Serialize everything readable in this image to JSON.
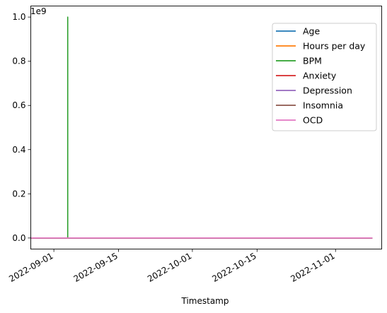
{
  "chart_data": {
    "type": "line",
    "title": "",
    "xlabel": "Timestamp",
    "ylabel": "",
    "y_offset_label": "1e9",
    "x_domain": [
      "2022-08-27",
      "2022-11-11"
    ],
    "ylim": [
      -0.05,
      1.05
    ],
    "x_ticks": [
      "2022-09-01",
      "2022-09-15",
      "2022-10-01",
      "2022-10-15",
      "2022-11-01"
    ],
    "y_ticks": [
      0.0,
      0.2,
      0.4,
      0.6,
      0.8,
      1.0
    ],
    "y_tick_labels": [
      "0.0",
      "0.2",
      "0.4",
      "0.6",
      "0.8",
      "1.0"
    ],
    "grid": false,
    "legend_position": "top-right",
    "data_start": "2022-08-27",
    "data_end": "2022-11-09",
    "series": [
      {
        "name": "Age",
        "color": "#1f77b4",
        "values": [
          [
            "2022-08-27",
            0.0
          ],
          [
            "2022-11-09",
            0.0
          ]
        ]
      },
      {
        "name": "Hours per day",
        "color": "#ff7f0e",
        "values": [
          [
            "2022-08-27",
            0.0
          ],
          [
            "2022-11-09",
            0.0
          ]
        ]
      },
      {
        "name": "BPM",
        "color": "#2ca02c",
        "values": [
          [
            "2022-08-27",
            0.0
          ],
          [
            "2022-09-04",
            0.0
          ],
          [
            "2022-09-04",
            1.0
          ],
          [
            "2022-09-04",
            0.0
          ],
          [
            "2022-11-09",
            0.0
          ]
        ]
      },
      {
        "name": "Anxiety",
        "color": "#d62728",
        "values": [
          [
            "2022-08-27",
            0.0
          ],
          [
            "2022-11-09",
            0.0
          ]
        ]
      },
      {
        "name": "Depression",
        "color": "#9467bd",
        "values": [
          [
            "2022-08-27",
            0.0
          ],
          [
            "2022-11-09",
            0.0
          ]
        ]
      },
      {
        "name": "Insomnia",
        "color": "#8c564b",
        "values": [
          [
            "2022-08-27",
            0.0
          ],
          [
            "2022-11-09",
            0.0
          ]
        ]
      },
      {
        "name": "OCD",
        "color": "#e377c2",
        "values": [
          [
            "2022-08-27",
            0.0
          ],
          [
            "2022-11-09",
            0.0
          ]
        ]
      }
    ]
  }
}
